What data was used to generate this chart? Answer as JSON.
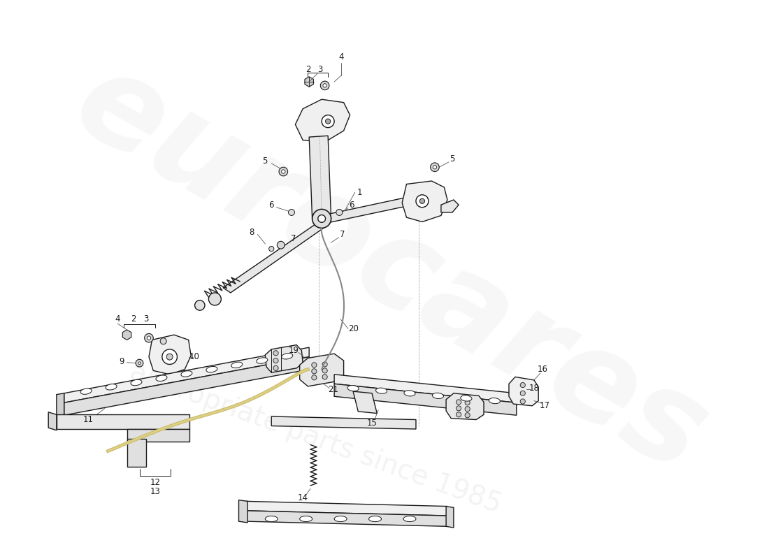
{
  "background_color": "#ffffff",
  "line_color": "#1a1a1a",
  "watermark_color": "#e0e0e0",
  "label_fs": 8.5
}
